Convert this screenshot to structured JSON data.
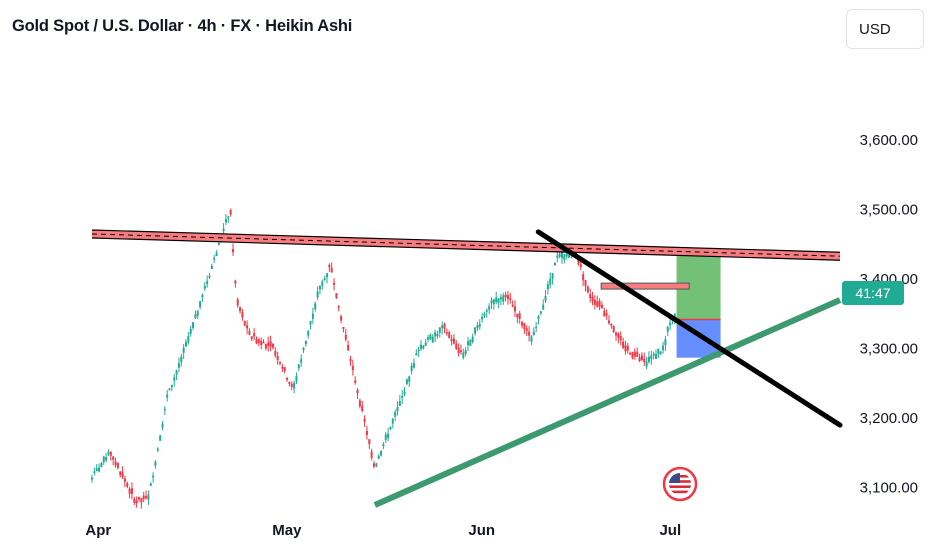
{
  "header": {
    "title": "Gold Spot / U.S. Dollar · 4h · FX · Heikin Ashi",
    "currency_button": "USD"
  },
  "countdown": {
    "label": "41:47",
    "color": "#22ab94"
  },
  "colors": {
    "up": "#22ab94",
    "down": "#f23645",
    "resistance": "#f77c80",
    "support": "#3d9970",
    "target": "#4caf50",
    "stop": "#2962ff"
  },
  "icons": {
    "flag": "us-flag-icon"
  },
  "chart_data": {
    "type": "candlestick",
    "style": "Heikin Ashi",
    "symbol": "Gold Spot / U.S. Dollar",
    "interval": "4h",
    "ylim": [
      3075,
      3665
    ],
    "y_ticks": [
      {
        "value": 3600,
        "label": "3,600.00"
      },
      {
        "value": 3500,
        "label": "3,500.00"
      },
      {
        "value": 3400,
        "label": "3,400.00"
      },
      {
        "value": 3300,
        "label": "3,300.00"
      },
      {
        "value": 3200,
        "label": "3,200.00"
      },
      {
        "value": 3100,
        "label": "3,100.00"
      }
    ],
    "x_ticks": [
      {
        "date": "2025-04-01",
        "label": "Apr"
      },
      {
        "date": "2025-05-01",
        "label": "May"
      },
      {
        "date": "2025-06-01",
        "label": "Jun"
      },
      {
        "date": "2025-07-01",
        "label": "Jul"
      }
    ],
    "grid": false,
    "price_path": [
      [
        "2025-03-31",
        3115
      ],
      [
        "2025-04-03",
        3150
      ],
      [
        "2025-04-07",
        3080
      ],
      [
        "2025-04-09",
        3085
      ],
      [
        "2025-04-12",
        3230
      ],
      [
        "2025-04-16",
        3330
      ],
      [
        "2025-04-22",
        3500
      ],
      [
        "2025-04-23",
        3370
      ],
      [
        "2025-04-25",
        3320
      ],
      [
        "2025-04-29",
        3300
      ],
      [
        "2025-05-02",
        3240
      ],
      [
        "2025-05-06",
        3380
      ],
      [
        "2025-05-08",
        3420
      ],
      [
        "2025-05-10",
        3330
      ],
      [
        "2025-05-15",
        3130
      ],
      [
        "2025-05-19",
        3220
      ],
      [
        "2025-05-22",
        3300
      ],
      [
        "2025-05-26",
        3330
      ],
      [
        "2025-05-29",
        3290
      ],
      [
        "2025-06-02",
        3360
      ],
      [
        "2025-06-05",
        3380
      ],
      [
        "2025-06-09",
        3310
      ],
      [
        "2025-06-13",
        3430
      ],
      [
        "2025-06-16",
        3440
      ],
      [
        "2025-06-18",
        3380
      ],
      [
        "2025-06-20",
        3360
      ],
      [
        "2025-06-24",
        3300
      ],
      [
        "2025-06-27",
        3280
      ],
      [
        "2025-06-30",
        3300
      ],
      [
        "2025-07-01",
        3340
      ],
      [
        "2025-07-02",
        3350
      ]
    ],
    "drawings": {
      "resistance_line": {
        "from": [
          "2025-03-31",
          3465
        ],
        "to": [
          "2025-07-28",
          3433
        ]
      },
      "descending_line": {
        "from": [
          "2025-06-10",
          3468
        ],
        "to": [
          "2025-07-28",
          3190
        ]
      },
      "ascending_support": {
        "from": [
          "2025-05-15",
          3075
        ],
        "to": [
          "2025-07-28",
          3370
        ]
      },
      "small_level": {
        "from": [
          "2025-06-20",
          3390
        ],
        "to": [
          "2025-07-04",
          3390
        ]
      },
      "long_position": {
        "from": [
          "2025-07-02",
          3287
        ],
        "to": [
          "2025-07-09",
          3445
        ],
        "entry": 3342,
        "target": 3445,
        "stop": 3287
      }
    }
  }
}
